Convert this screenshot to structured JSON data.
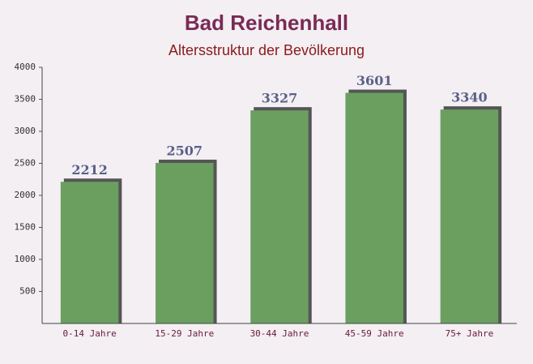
{
  "chart_data": {
    "type": "bar",
    "title": "Bad Reichenhall",
    "subtitle": "Altersstruktur der Bevölkerung",
    "categories": [
      "0-14 Jahre",
      "15-29 Jahre",
      "30-44 Jahre",
      "45-59 Jahre",
      "75+ Jahre"
    ],
    "values": [
      2212,
      2507,
      3327,
      3601,
      3340
    ],
    "color": "#6a9f60",
    "ylim": [
      0,
      4000
    ],
    "yticks": [
      500,
      1000,
      1500,
      2000,
      2500,
      3000,
      3500,
      4000
    ],
    "grid": false
  }
}
